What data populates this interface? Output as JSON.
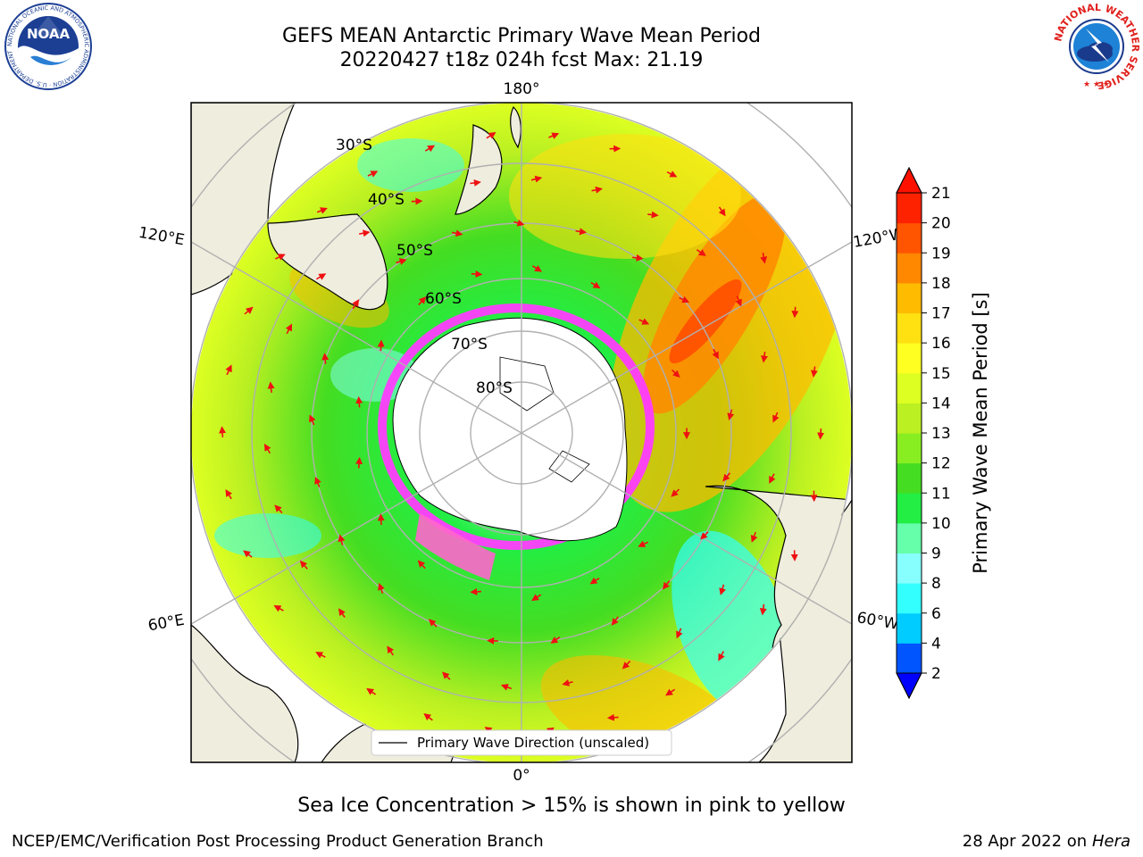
{
  "title": {
    "line1": "GEFS MEAN Antarctic Primary Wave Mean Period",
    "line2": "20220427 t18z 024h fcst   Max: 21.19"
  },
  "logos": {
    "left": {
      "name": "noaa-logo",
      "text": "NOAA",
      "ring_text": "NATIONAL OCEANIC AND ATMOSPHERIC ADMINISTRATION · U.S. DEPARTMENT OF COMMERCE"
    },
    "right": {
      "name": "nws-logo",
      "ring_text": "NATIONAL WEATHER SERVICE"
    }
  },
  "map": {
    "projection": "south-polar-stereographic",
    "longitude_labels": {
      "top": "180°",
      "bottom": "0°",
      "upper_left": "120°E",
      "upper_right": "120°W",
      "lower_left": "60°E",
      "lower_right": "60°W"
    },
    "latitude_labels": [
      "30°S",
      "40°S",
      "50°S",
      "60°S",
      "70°S",
      "80°S"
    ],
    "legend": {
      "entry": "Primary Wave Direction (unscaled)"
    },
    "colors": {
      "land": "#efedde",
      "antarctic_ice_shelf": "#ffffff",
      "sea_ice_edge": "#ff3cff",
      "arrow": "#ee1111",
      "graticule": "#b0b0b0"
    }
  },
  "colorbar": {
    "label": "Primary Wave Mean Period [s]",
    "ticks": [
      "2",
      "4",
      "6",
      "8",
      "9",
      "10",
      "11",
      "12",
      "13",
      "14",
      "15",
      "16",
      "17",
      "18",
      "19",
      "20",
      "21"
    ],
    "colors": [
      "#0055ff",
      "#00ccff",
      "#33ffff",
      "#88ffff",
      "#66ffaa",
      "#22ee44",
      "#44dd22",
      "#88ee22",
      "#bbf022",
      "#ddff22",
      "#ffff22",
      "#ffe011",
      "#ffbb00",
      "#ff8800",
      "#ff5500",
      "#ff2200"
    ],
    "extend_low_color": "#0000ff",
    "extend_high_color": "#ff1100"
  },
  "note": "Sea Ice Concentration > 15% is shown in pink to yellow",
  "footer": {
    "left": "NCEP/EMC/Verification Post Processing Product Generation Branch",
    "right_prefix": "28 Apr 2022 on ",
    "right_host": "Hera"
  }
}
